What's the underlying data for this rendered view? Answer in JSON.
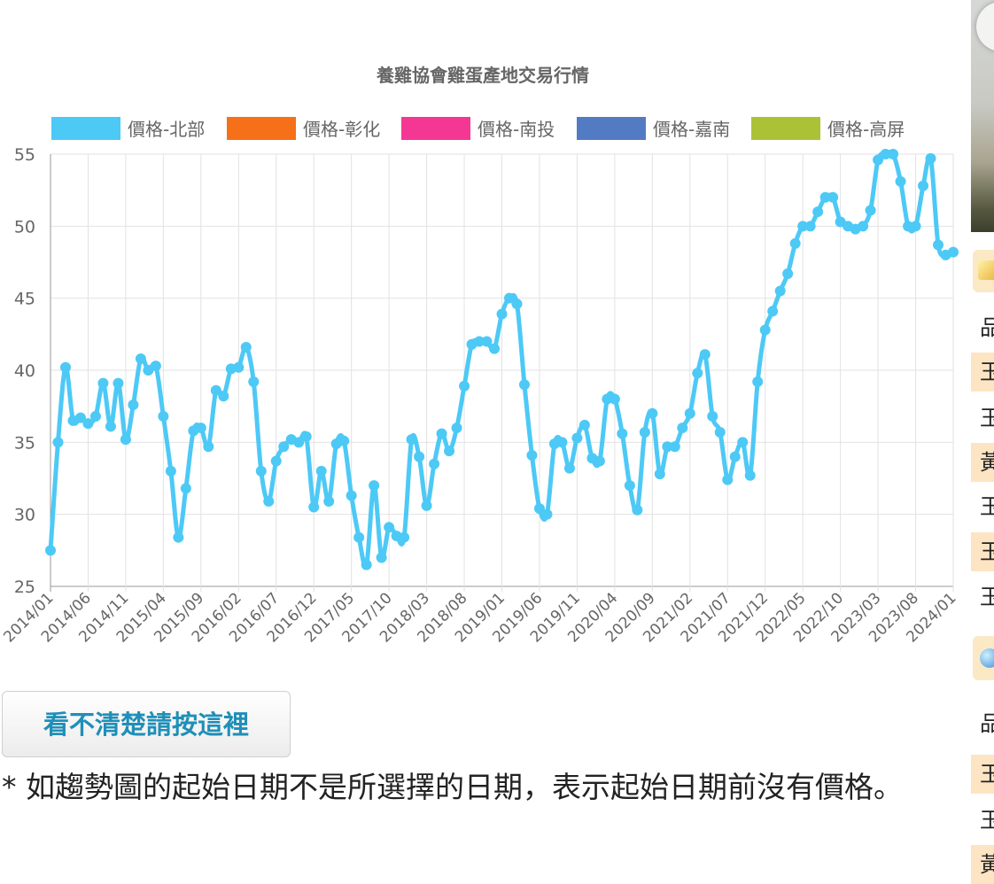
{
  "button": {
    "label": "看不清楚請按這裡"
  },
  "note": {
    "text": "* 如趨勢圖的起始日期不是所選擇的日期，表示起始日期前沒有價格。"
  },
  "right_panel": {
    "header1": "品",
    "rows1": [
      "玉",
      "玉",
      "黃",
      "玉",
      "玉",
      "玉"
    ],
    "header2": "品",
    "rows2": [
      "玉",
      "玉",
      "黃"
    ]
  },
  "chart_data": {
    "type": "line",
    "title": "養雞協會雞蛋產地交易行情",
    "ylim": [
      25,
      55
    ],
    "yticks": [
      25,
      30,
      35,
      40,
      45,
      50,
      55
    ],
    "grid": true,
    "legend_position": "top",
    "x_ticklabels": [
      "2014/01",
      "2014/06",
      "2014/11",
      "2015/04",
      "2015/09",
      "2016/02",
      "2016/07",
      "2016/12",
      "2017/05",
      "2017/10",
      "2018/03",
      "2018/08",
      "2019/01",
      "2019/06",
      "2019/11",
      "2020/04",
      "2020/09",
      "2021/02",
      "2021/07",
      "2021/12",
      "2022/05",
      "2022/10",
      "2023/03",
      "2023/08",
      "2024/01"
    ],
    "x_start": "2014/01",
    "x_end": "2024/01",
    "series": [
      {
        "name": "價格-北部",
        "color": "#4dc9f6",
        "values": [
          27.5,
          35,
          40.2,
          36.5,
          36.7,
          36.3,
          36.8,
          39.1,
          36.1,
          39.1,
          35.2,
          37.6,
          40.8,
          40,
          40.3,
          36.8,
          33,
          28.4,
          31.8,
          35.8,
          36,
          34.7,
          38.6,
          38.2,
          40.1,
          40.2,
          41.6,
          39.2,
          33,
          30.9,
          33.7,
          34.7,
          35.2,
          35,
          35.4,
          30.5,
          33,
          30.9,
          34.9,
          35.1,
          31.3,
          28.4,
          26.5,
          32,
          27,
          29.1,
          28.5,
          28.4,
          35.2,
          34,
          30.6,
          33.5,
          35.6,
          34.4,
          36,
          38.9,
          41.8,
          42,
          42,
          41.5,
          43.9,
          45,
          44.6,
          39,
          34.1,
          30.4,
          30,
          34.9,
          35,
          33.2,
          35.3,
          36.2,
          33.9,
          33.7,
          38,
          38,
          35.6,
          32,
          30.3,
          35.7,
          37,
          32.8,
          34.7,
          34.7,
          36,
          37,
          39.8,
          41.1,
          36.8,
          35.7,
          32.4,
          34,
          35,
          32.7,
          39.2,
          42.8,
          44.1,
          45.5,
          46.7,
          48.8,
          50,
          50,
          51,
          52,
          52,
          50.3,
          50,
          49.8,
          50,
          51.1,
          54.6,
          55,
          55,
          53.1,
          50,
          50,
          52.8,
          54.7,
          48.7,
          48,
          48.2
        ]
      },
      {
        "name": "價格-彰化",
        "color": "#f67019",
        "values": []
      },
      {
        "name": "價格-南投",
        "color": "#f53794",
        "values": []
      },
      {
        "name": "價格-嘉南",
        "color": "#537bc4",
        "values": []
      },
      {
        "name": "價格-高屏",
        "color": "#acc236",
        "values": []
      }
    ]
  }
}
